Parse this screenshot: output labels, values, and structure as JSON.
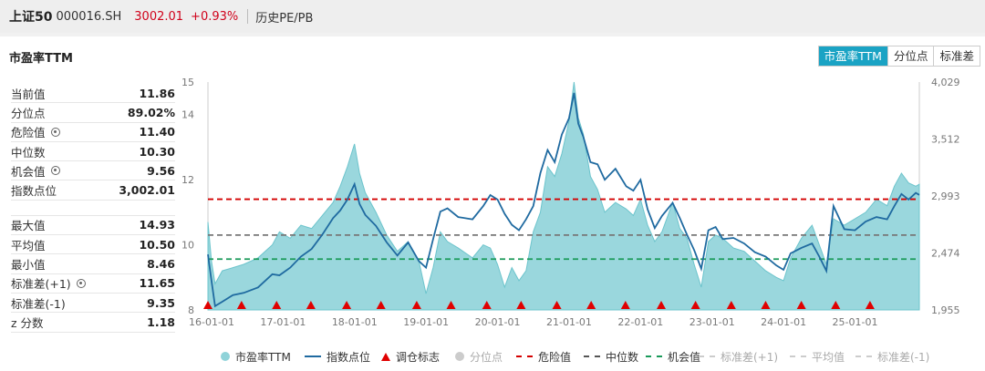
{
  "header": {
    "name": "上证50",
    "code": "000016.SH",
    "price": "3002.01",
    "change": "+0.93%",
    "history_label": "历史PE/PB"
  },
  "panel": {
    "title": "市盈率TTM",
    "tabs": [
      {
        "label": "市盈率TTM",
        "active": true
      },
      {
        "label": "分位点",
        "active": false
      },
      {
        "label": "标准差",
        "active": false
      }
    ]
  },
  "stats_top": [
    {
      "label": "当前值",
      "value": "11.86",
      "gear": false
    },
    {
      "label": "分位点",
      "value": "89.02%",
      "gear": false
    },
    {
      "label": "危险值",
      "value": "11.40",
      "gear": true
    },
    {
      "label": "中位数",
      "value": "10.30",
      "gear": false
    },
    {
      "label": "机会值",
      "value": "9.56",
      "gear": true
    },
    {
      "label": "指数点位",
      "value": "3,002.01",
      "gear": false
    }
  ],
  "stats_bottom": [
    {
      "label": "最大值",
      "value": "14.93",
      "gear": false
    },
    {
      "label": "平均值",
      "value": "10.50",
      "gear": false
    },
    {
      "label": "最小值",
      "value": "8.46",
      "gear": false
    },
    {
      "label": "标准差(+1)",
      "value": "11.65",
      "gear": true
    },
    {
      "label": "标准差(-1)",
      "value": "9.35",
      "gear": false
    },
    {
      "label": "z 分数",
      "value": "1.18",
      "gear": false
    }
  ],
  "colors": {
    "pe_fill": "#8fd3d9",
    "index_line": "#1f6aa0",
    "danger": "#d40000",
    "median": "#777777",
    "opportunity": "#1a9a5a",
    "marker": "#e00000"
  },
  "chart_data": {
    "type": "area",
    "x_ticks": [
      "16-01-01",
      "17-01-01",
      "18-01-01",
      "19-01-01",
      "20-01-01",
      "21-01-01",
      "22-01-01",
      "23-01-01",
      "24-01-01",
      "25-01-01"
    ],
    "y_left_ticks": [
      "8",
      "10",
      "12",
      "14",
      "15"
    ],
    "y_right_ticks": [
      "1,955",
      "2,474",
      "2,993",
      "3,512",
      "4,029"
    ],
    "y_left_range": [
      8,
      15
    ],
    "y_right_range": [
      1955,
      4029
    ],
    "x_range": [
      2016.0,
      2025.95
    ],
    "reference_lines": [
      {
        "name": "危险值",
        "value": 11.4
      },
      {
        "name": "中位数",
        "value": 10.3
      },
      {
        "name": "机会值",
        "value": 9.56
      }
    ],
    "series": [
      {
        "name": "市盈率TTM",
        "axis": "left",
        "points": [
          [
            2016.0,
            10.7
          ],
          [
            2016.05,
            9.5
          ],
          [
            2016.1,
            8.8
          ],
          [
            2016.2,
            9.2
          ],
          [
            2016.35,
            9.3
          ],
          [
            2016.5,
            9.4
          ],
          [
            2016.7,
            9.6
          ],
          [
            2016.9,
            10.0
          ],
          [
            2017.0,
            10.4
          ],
          [
            2017.15,
            10.2
          ],
          [
            2017.3,
            10.6
          ],
          [
            2017.45,
            10.5
          ],
          [
            2017.6,
            10.9
          ],
          [
            2017.75,
            11.3
          ],
          [
            2017.85,
            11.8
          ],
          [
            2017.95,
            12.4
          ],
          [
            2018.05,
            13.1
          ],
          [
            2018.12,
            12.2
          ],
          [
            2018.2,
            11.6
          ],
          [
            2018.35,
            11.0
          ],
          [
            2018.5,
            10.3
          ],
          [
            2018.65,
            9.8
          ],
          [
            2018.8,
            10.1
          ],
          [
            2018.95,
            9.5
          ],
          [
            2019.05,
            8.5
          ],
          [
            2019.15,
            9.3
          ],
          [
            2019.25,
            10.4
          ],
          [
            2019.35,
            10.1
          ],
          [
            2019.5,
            9.9
          ],
          [
            2019.7,
            9.6
          ],
          [
            2019.85,
            10.0
          ],
          [
            2019.95,
            9.9
          ],
          [
            2020.05,
            9.4
          ],
          [
            2020.15,
            8.7
          ],
          [
            2020.25,
            9.3
          ],
          [
            2020.35,
            8.9
          ],
          [
            2020.45,
            9.2
          ],
          [
            2020.55,
            10.4
          ],
          [
            2020.65,
            11.0
          ],
          [
            2020.75,
            12.4
          ],
          [
            2020.85,
            12.1
          ],
          [
            2020.95,
            12.8
          ],
          [
            2021.05,
            13.8
          ],
          [
            2021.12,
            15.0
          ],
          [
            2021.18,
            13.9
          ],
          [
            2021.25,
            13.4
          ],
          [
            2021.35,
            12.1
          ],
          [
            2021.45,
            11.7
          ],
          [
            2021.55,
            11.0
          ],
          [
            2021.7,
            11.3
          ],
          [
            2021.85,
            11.1
          ],
          [
            2021.95,
            10.9
          ],
          [
            2022.05,
            11.4
          ],
          [
            2022.15,
            10.6
          ],
          [
            2022.25,
            10.1
          ],
          [
            2022.35,
            10.4
          ],
          [
            2022.5,
            11.3
          ],
          [
            2022.6,
            10.5
          ],
          [
            2022.7,
            10.2
          ],
          [
            2022.8,
            9.4
          ],
          [
            2022.9,
            8.7
          ],
          [
            2023.0,
            10.1
          ],
          [
            2023.1,
            10.3
          ],
          [
            2023.2,
            10.2
          ],
          [
            2023.35,
            9.9
          ],
          [
            2023.5,
            9.8
          ],
          [
            2023.65,
            9.5
          ],
          [
            2023.8,
            9.2
          ],
          [
            2023.95,
            9.0
          ],
          [
            2024.05,
            8.9
          ],
          [
            2024.15,
            9.6
          ],
          [
            2024.3,
            10.2
          ],
          [
            2024.45,
            10.6
          ],
          [
            2024.55,
            10.0
          ],
          [
            2024.65,
            9.4
          ],
          [
            2024.75,
            10.8
          ],
          [
            2024.9,
            10.6
          ],
          [
            2025.05,
            10.8
          ],
          [
            2025.2,
            11.0
          ],
          [
            2025.35,
            11.4
          ],
          [
            2025.5,
            11.2
          ],
          [
            2025.6,
            11.8
          ],
          [
            2025.7,
            12.2
          ],
          [
            2025.8,
            11.9
          ],
          [
            2025.9,
            11.8
          ],
          [
            2025.95,
            11.86
          ]
        ]
      },
      {
        "name": "指数点位",
        "axis": "right",
        "points": [
          [
            2016.0,
            2460
          ],
          [
            2016.05,
            2220
          ],
          [
            2016.1,
            1990
          ],
          [
            2016.2,
            2030
          ],
          [
            2016.35,
            2090
          ],
          [
            2016.5,
            2110
          ],
          [
            2016.7,
            2160
          ],
          [
            2016.9,
            2280
          ],
          [
            2017.0,
            2270
          ],
          [
            2017.15,
            2340
          ],
          [
            2017.3,
            2440
          ],
          [
            2017.45,
            2510
          ],
          [
            2017.6,
            2640
          ],
          [
            2017.75,
            2790
          ],
          [
            2017.85,
            2860
          ],
          [
            2017.95,
            2960
          ],
          [
            2018.05,
            3100
          ],
          [
            2018.12,
            2920
          ],
          [
            2018.2,
            2820
          ],
          [
            2018.35,
            2720
          ],
          [
            2018.5,
            2570
          ],
          [
            2018.65,
            2450
          ],
          [
            2018.8,
            2570
          ],
          [
            2018.95,
            2400
          ],
          [
            2019.05,
            2340
          ],
          [
            2019.15,
            2600
          ],
          [
            2019.25,
            2850
          ],
          [
            2019.35,
            2880
          ],
          [
            2019.5,
            2800
          ],
          [
            2019.7,
            2780
          ],
          [
            2019.85,
            2900
          ],
          [
            2019.95,
            3000
          ],
          [
            2020.05,
            2960
          ],
          [
            2020.15,
            2830
          ],
          [
            2020.25,
            2730
          ],
          [
            2020.35,
            2680
          ],
          [
            2020.45,
            2780
          ],
          [
            2020.55,
            2900
          ],
          [
            2020.65,
            3200
          ],
          [
            2020.75,
            3410
          ],
          [
            2020.85,
            3300
          ],
          [
            2020.95,
            3550
          ],
          [
            2021.05,
            3700
          ],
          [
            2021.12,
            3930
          ],
          [
            2021.18,
            3650
          ],
          [
            2021.25,
            3530
          ],
          [
            2021.35,
            3300
          ],
          [
            2021.45,
            3280
          ],
          [
            2021.55,
            3140
          ],
          [
            2021.7,
            3240
          ],
          [
            2021.85,
            3080
          ],
          [
            2021.95,
            3040
          ],
          [
            2022.05,
            3140
          ],
          [
            2022.15,
            2870
          ],
          [
            2022.25,
            2700
          ],
          [
            2022.35,
            2810
          ],
          [
            2022.5,
            2930
          ],
          [
            2022.6,
            2790
          ],
          [
            2022.7,
            2640
          ],
          [
            2022.8,
            2500
          ],
          [
            2022.9,
            2330
          ],
          [
            2023.0,
            2680
          ],
          [
            2023.1,
            2710
          ],
          [
            2023.2,
            2600
          ],
          [
            2023.35,
            2610
          ],
          [
            2023.5,
            2560
          ],
          [
            2023.65,
            2480
          ],
          [
            2023.8,
            2440
          ],
          [
            2023.95,
            2360
          ],
          [
            2024.05,
            2320
          ],
          [
            2024.15,
            2470
          ],
          [
            2024.3,
            2520
          ],
          [
            2024.45,
            2560
          ],
          [
            2024.55,
            2440
          ],
          [
            2024.65,
            2310
          ],
          [
            2024.75,
            2900
          ],
          [
            2024.9,
            2690
          ],
          [
            2025.05,
            2680
          ],
          [
            2025.2,
            2760
          ],
          [
            2025.35,
            2800
          ],
          [
            2025.5,
            2780
          ],
          [
            2025.6,
            2900
          ],
          [
            2025.7,
            3010
          ],
          [
            2025.8,
            2960
          ],
          [
            2025.9,
            3020
          ],
          [
            2025.95,
            3002
          ]
        ]
      }
    ],
    "markers": {
      "name": "调仓标志",
      "x": [
        2016.0,
        2016.47,
        2016.96,
        2017.44,
        2017.94,
        2018.42,
        2018.92,
        2019.4,
        2019.9,
        2020.38,
        2020.88,
        2021.36,
        2021.84,
        2022.34,
        2022.82,
        2023.32,
        2023.8,
        2024.3,
        2024.78,
        2025.26
      ]
    }
  },
  "legend": [
    {
      "name": "市盈率TTM",
      "kind": "dot",
      "color": "#8fd3d9",
      "muted": false
    },
    {
      "name": "指数点位",
      "kind": "line",
      "color": "#1f6aa0",
      "muted": false
    },
    {
      "name": "调仓标志",
      "kind": "tri",
      "color": "#e00000",
      "muted": false
    },
    {
      "name": "分位点",
      "kind": "dot",
      "color": "#cccccc",
      "muted": true
    },
    {
      "name": "危险值",
      "kind": "dash",
      "color": "#d40000",
      "muted": false
    },
    {
      "name": "中位数",
      "kind": "dash",
      "color": "#555555",
      "muted": false
    },
    {
      "name": "机会值",
      "kind": "dash",
      "color": "#1a9a5a",
      "muted": false
    },
    {
      "name": "标准差(+1)",
      "kind": "dash",
      "color": "#cccccc",
      "muted": true
    },
    {
      "name": "平均值",
      "kind": "dash",
      "color": "#cccccc",
      "muted": true
    },
    {
      "name": "标准差(-1)",
      "kind": "dash",
      "color": "#cccccc",
      "muted": true
    }
  ]
}
